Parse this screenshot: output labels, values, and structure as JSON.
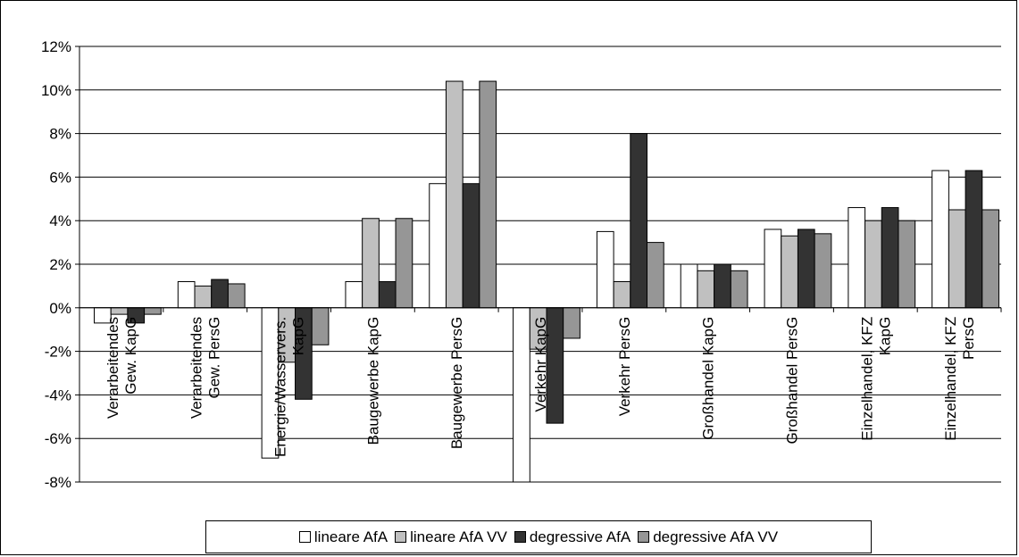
{
  "chart_data": {
    "type": "bar",
    "categories": [
      [
        "Verarbeitendes",
        "Gew. KapG"
      ],
      [
        "Verarbeitendes",
        "Gew. PersG"
      ],
      [
        "Energie/Wasservers.",
        "KapG"
      ],
      [
        "Baugewerbe KapG"
      ],
      [
        "Baugewerbe PersG"
      ],
      [
        "Verkehr KapG"
      ],
      [
        "Verkehr PersG"
      ],
      [
        "Großhandel KapG"
      ],
      [
        "Großhandel PersG"
      ],
      [
        "Einzelhandel, KFZ",
        "KapG"
      ],
      [
        "Einzelhandel, KFZ",
        "PersG"
      ]
    ],
    "series": [
      {
        "name": "lineare AfA",
        "color": "#ffffff",
        "values": [
          -0.7,
          1.2,
          -6.9,
          1.2,
          5.7,
          -8.0,
          3.5,
          2.0,
          3.6,
          4.6,
          6.3
        ]
      },
      {
        "name": "lineare AfA VV",
        "color": "#c0c0c0",
        "values": [
          -0.3,
          1.0,
          -2.5,
          4.1,
          10.4,
          -1.9,
          1.2,
          1.7,
          3.3,
          4.0,
          4.5
        ]
      },
      {
        "name": "degressive AfA",
        "color": "#333333",
        "values": [
          -0.7,
          1.3,
          -4.2,
          1.2,
          5.7,
          -5.3,
          8.0,
          2.0,
          3.6,
          4.6,
          6.3
        ]
      },
      {
        "name": "degressive AfA VV",
        "color": "#969696",
        "values": [
          -0.3,
          1.1,
          -1.7,
          4.1,
          10.4,
          -1.4,
          3.0,
          1.7,
          3.4,
          4.0,
          4.5
        ]
      }
    ],
    "ylim": [
      -8,
      12
    ],
    "yticks": [
      "-8%",
      "-6%",
      "-4%",
      "-2%",
      "0%",
      "2%",
      "4%",
      "6%",
      "8%",
      "10%",
      "12%"
    ],
    "grid": true,
    "legend_position": "bottom"
  }
}
